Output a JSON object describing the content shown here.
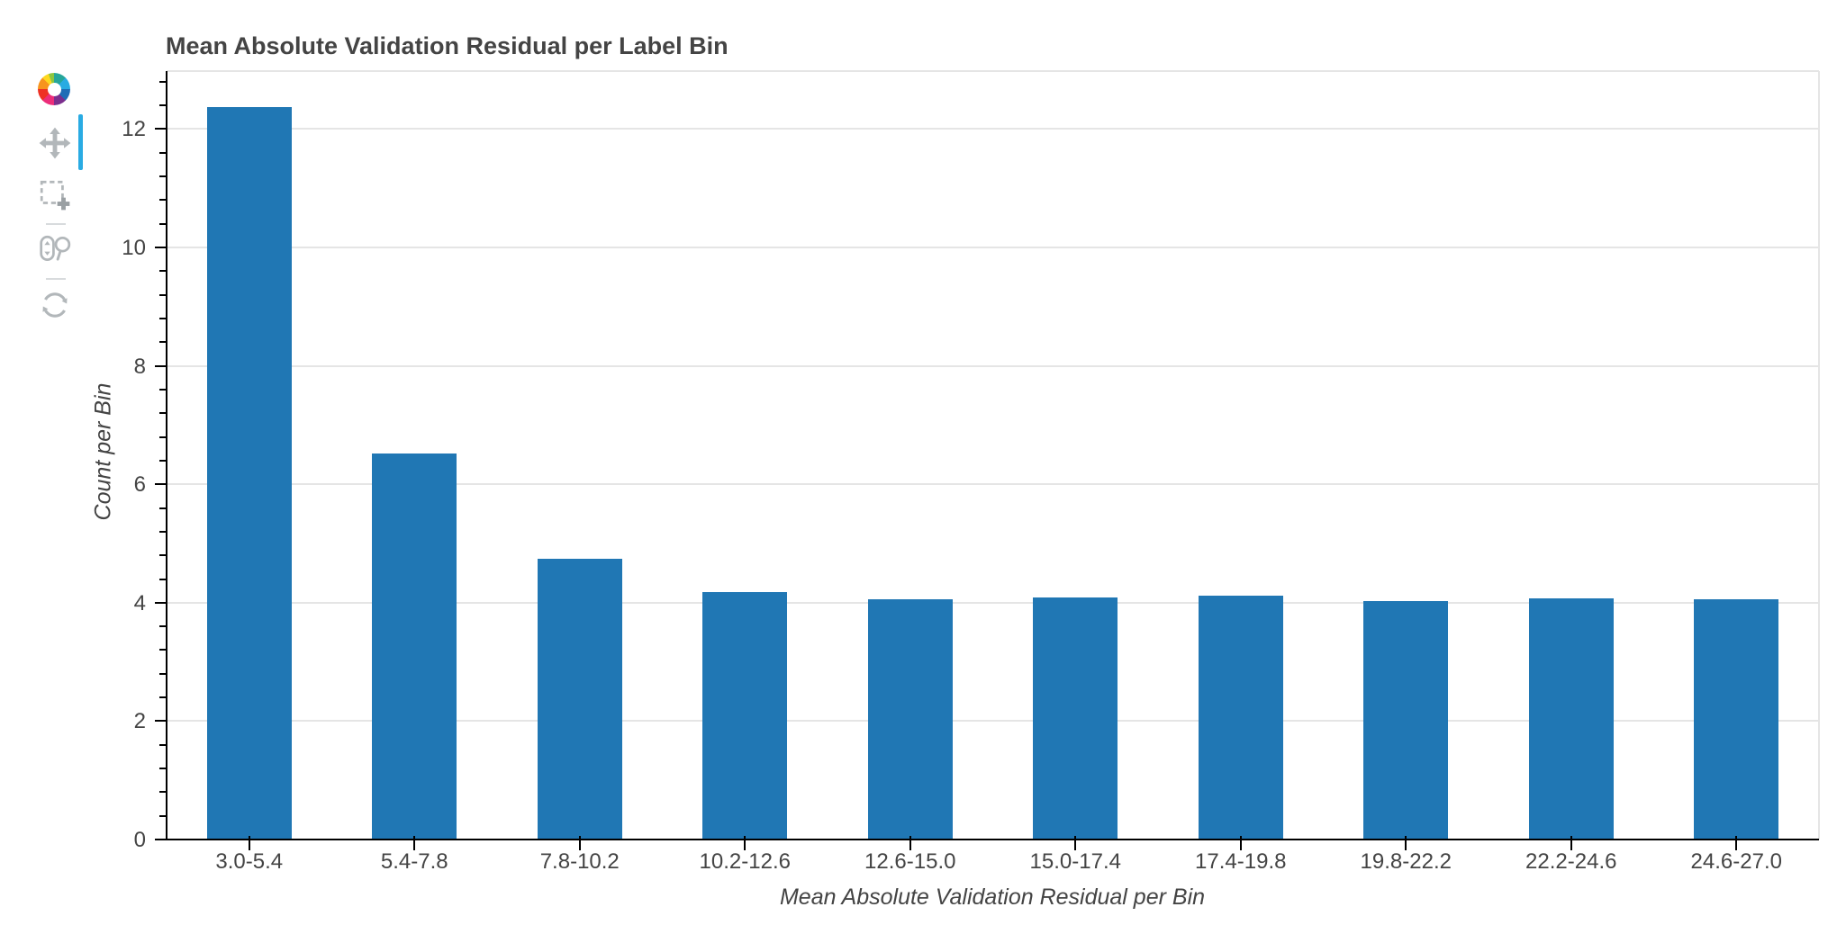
{
  "app": {
    "name": "Bokeh plot",
    "accent_color": "#29abe3",
    "toolbar_icon_color": "#b2b7ba"
  },
  "toolbar": {
    "orientation": "vertical",
    "logo": "bokeh-logo",
    "tools": [
      {
        "label": "Pan",
        "icon": "move-icon",
        "active": true
      },
      {
        "label": "Box Zoom",
        "icon": "box-zoom-icon",
        "active": false
      },
      {
        "label": "Wheel Zoom",
        "icon": "wheel-zoom-icon",
        "active": false
      },
      {
        "label": "Reset",
        "icon": "reset-icon",
        "active": false
      }
    ]
  },
  "chart_data": {
    "type": "bar",
    "title": "Mean Absolute Validation Residual per Label Bin",
    "xlabel": "Mean Absolute Validation Residual per Bin",
    "ylabel": "Count per Bin",
    "categories": [
      "3.0-5.4",
      "5.4-7.8",
      "7.8-10.2",
      "10.2-12.6",
      "12.6-15.0",
      "15.0-17.4",
      "17.4-19.8",
      "19.8-22.2",
      "22.2-24.6",
      "24.6-27.0"
    ],
    "values": [
      12.37,
      6.52,
      4.74,
      4.18,
      4.06,
      4.09,
      4.12,
      4.03,
      4.07,
      4.06
    ],
    "ylim": [
      0,
      12.98
    ],
    "y_major_ticks": [
      0,
      2,
      4,
      6,
      8,
      10,
      12
    ],
    "y_minor_step": 0.4,
    "grid": true,
    "legend_position": "none",
    "bar_color": "#2077b4",
    "grid_color": "#e5e5e5",
    "axis_color": "#000000",
    "label_color": "#444444",
    "title_color": "#444444"
  }
}
